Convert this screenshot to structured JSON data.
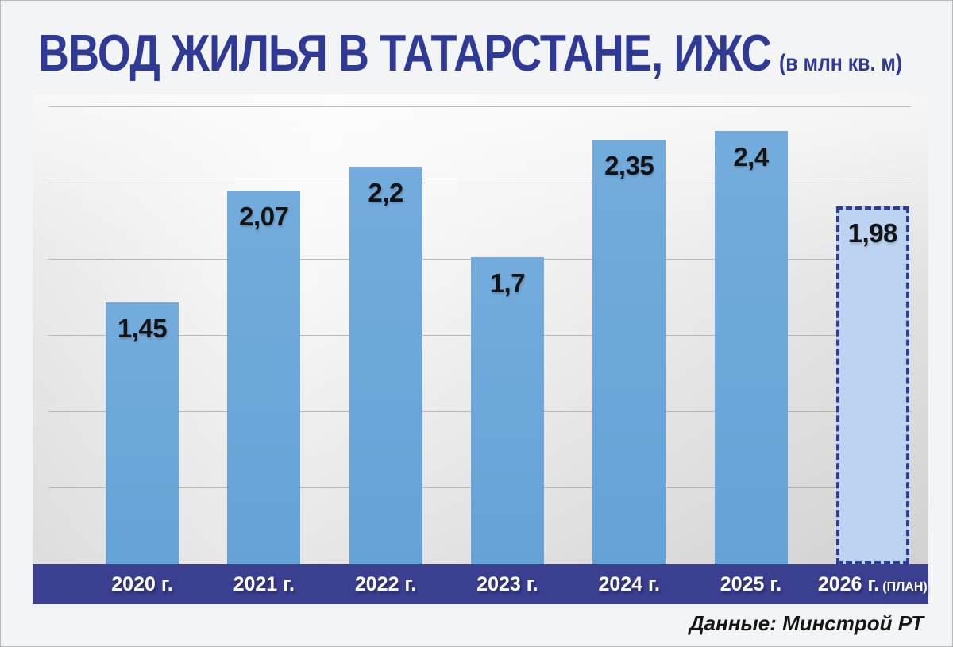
{
  "title": {
    "main": "ВВОД ЖИЛЬЯ В ТАТАРСТАНЕ, ИЖС",
    "unit": "(в млн кв. м)"
  },
  "source": "Данные: Минстрой РТ",
  "colors": {
    "title": "#2e3a96",
    "bar": "#68a6d9",
    "plan_bar_fill": "#bcd4f2",
    "plan_bar_border": "#2e3e96",
    "axis_band": "#3b3f90",
    "axis_label_text": "#ffffff",
    "value_label_text": "#131313",
    "background": "#f3f4f6",
    "gridline": "#a5a5a5"
  },
  "chart_data": {
    "type": "bar",
    "title": "ВВОД ЖИЛЬЯ В ТАТАРСТАНЕ, ИЖС (в млн кв. м)",
    "categories": [
      "2020 г.",
      "2021 г.",
      "2022 г.",
      "2023 г.",
      "2024 г.",
      "2025 г.",
      "2026 г."
    ],
    "values": [
      1.45,
      2.07,
      2.2,
      1.7,
      2.35,
      2.4,
      1.98
    ],
    "value_labels": [
      "1,45",
      "2,07",
      "2,2",
      "1,7",
      "2,35",
      "2,4",
      "1,98"
    ],
    "plan_index": 6,
    "plan_suffix": "(ПЛАН)",
    "xlabel": "",
    "ylabel": "млн кв. м",
    "ylim": [
      0,
      2.6
    ],
    "grid": true,
    "legend": false,
    "source": "Данные: Минстрой РТ"
  }
}
